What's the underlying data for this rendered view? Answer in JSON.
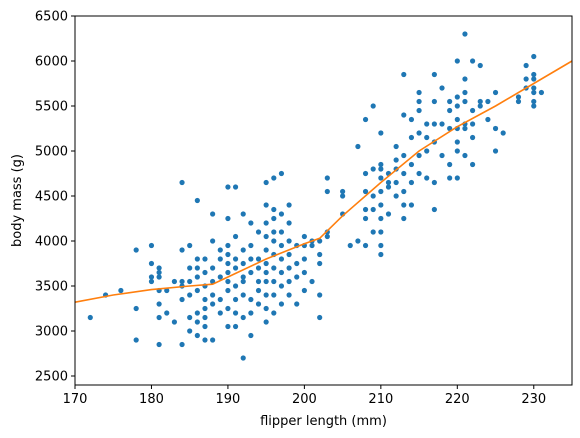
{
  "chart_data": {
    "type": "scatter",
    "title": "",
    "xlabel": "flipper length (mm)",
    "ylabel": "body mass (g)",
    "xlim": [
      170,
      235
    ],
    "ylim": [
      2400,
      6500
    ],
    "xticks": [
      170,
      180,
      190,
      200,
      210,
      220,
      230
    ],
    "yticks": [
      2500,
      3000,
      3500,
      4000,
      4500,
      5000,
      5500,
      6000,
      6500
    ],
    "grid": false,
    "legend": "none",
    "series": [
      {
        "kind": "scatter",
        "color": "#1f77b4",
        "points": [
          [
            172,
            3150
          ],
          [
            174,
            3400
          ],
          [
            176,
            3450
          ],
          [
            178,
            2900
          ],
          [
            178,
            3250
          ],
          [
            178,
            3900
          ],
          [
            180,
            3550
          ],
          [
            180,
            3600
          ],
          [
            180,
            3750
          ],
          [
            180,
            3950
          ],
          [
            181,
            2850
          ],
          [
            181,
            3150
          ],
          [
            181,
            3300
          ],
          [
            181,
            3450
          ],
          [
            181,
            3600
          ],
          [
            181,
            3650
          ],
          [
            181,
            3700
          ],
          [
            182,
            3200
          ],
          [
            182,
            3450
          ],
          [
            183,
            3100
          ],
          [
            183,
            3550
          ],
          [
            184,
            2850
          ],
          [
            184,
            3350
          ],
          [
            184,
            3500
          ],
          [
            184,
            3550
          ],
          [
            184,
            3900
          ],
          [
            184,
            4650
          ],
          [
            185,
            3000
          ],
          [
            185,
            3150
          ],
          [
            185,
            3400
          ],
          [
            185,
            3550
          ],
          [
            185,
            3700
          ],
          [
            185,
            3950
          ],
          [
            186,
            2950
          ],
          [
            186,
            3100
          ],
          [
            186,
            3200
          ],
          [
            186,
            3450
          ],
          [
            186,
            3600
          ],
          [
            186,
            3700
          ],
          [
            186,
            3800
          ],
          [
            186,
            4450
          ],
          [
            187,
            2900
          ],
          [
            187,
            3050
          ],
          [
            187,
            3150
          ],
          [
            187,
            3250
          ],
          [
            187,
            3350
          ],
          [
            187,
            3500
          ],
          [
            187,
            3650
          ],
          [
            187,
            3800
          ],
          [
            188,
            2900
          ],
          [
            188,
            3300
          ],
          [
            188,
            3400
          ],
          [
            188,
            3550
          ],
          [
            188,
            3700
          ],
          [
            188,
            4000
          ],
          [
            188,
            4300
          ],
          [
            189,
            3200
          ],
          [
            189,
            3350
          ],
          [
            189,
            3600
          ],
          [
            189,
            3800
          ],
          [
            189,
            3900
          ],
          [
            190,
            3050
          ],
          [
            190,
            3250
          ],
          [
            190,
            3450
          ],
          [
            190,
            3550
          ],
          [
            190,
            3650
          ],
          [
            190,
            3750
          ],
          [
            190,
            3850
          ],
          [
            190,
            3950
          ],
          [
            190,
            4250
          ],
          [
            190,
            4600
          ],
          [
            191,
            3050
          ],
          [
            191,
            3200
          ],
          [
            191,
            3350
          ],
          [
            191,
            3500
          ],
          [
            191,
            3700
          ],
          [
            191,
            3800
          ],
          [
            191,
            4050
          ],
          [
            191,
            4600
          ],
          [
            192,
            2700
          ],
          [
            192,
            3150
          ],
          [
            192,
            3400
          ],
          [
            192,
            3550
          ],
          [
            192,
            3600
          ],
          [
            192,
            3750
          ],
          [
            192,
            3900
          ],
          [
            192,
            4300
          ],
          [
            193,
            2950
          ],
          [
            193,
            3200
          ],
          [
            193,
            3350
          ],
          [
            193,
            3650
          ],
          [
            193,
            3800
          ],
          [
            193,
            3950
          ],
          [
            193,
            4200
          ],
          [
            194,
            3300
          ],
          [
            194,
            3450
          ],
          [
            194,
            3550
          ],
          [
            194,
            3700
          ],
          [
            194,
            3800
          ],
          [
            194,
            4100
          ],
          [
            195,
            3100
          ],
          [
            195,
            3250
          ],
          [
            195,
            3400
          ],
          [
            195,
            3550
          ],
          [
            195,
            3650
          ],
          [
            195,
            3750
          ],
          [
            195,
            3900
          ],
          [
            195,
            4050
          ],
          [
            195,
            4200
          ],
          [
            195,
            4400
          ],
          [
            195,
            4650
          ],
          [
            196,
            3200
          ],
          [
            196,
            3400
          ],
          [
            196,
            3550
          ],
          [
            196,
            3700
          ],
          [
            196,
            3850
          ],
          [
            196,
            4000
          ],
          [
            196,
            4100
          ],
          [
            196,
            4250
          ],
          [
            196,
            4350
          ],
          [
            196,
            4700
          ],
          [
            197,
            3300
          ],
          [
            197,
            3500
          ],
          [
            197,
            3650
          ],
          [
            197,
            3800
          ],
          [
            197,
            3950
          ],
          [
            197,
            4100
          ],
          [
            197,
            4300
          ],
          [
            197,
            4750
          ],
          [
            198,
            3400
          ],
          [
            198,
            3550
          ],
          [
            198,
            3700
          ],
          [
            198,
            3850
          ],
          [
            198,
            4000
          ],
          [
            198,
            4200
          ],
          [
            198,
            4400
          ],
          [
            199,
            3300
          ],
          [
            199,
            3600
          ],
          [
            199,
            3750
          ],
          [
            199,
            3950
          ],
          [
            200,
            3450
          ],
          [
            200,
            3650
          ],
          [
            200,
            3800
          ],
          [
            200,
            3950
          ],
          [
            200,
            4050
          ],
          [
            201,
            3550
          ],
          [
            201,
            3950
          ],
          [
            201,
            4000
          ],
          [
            202,
            3150
          ],
          [
            202,
            3400
          ],
          [
            202,
            3750
          ],
          [
            202,
            3850
          ],
          [
            202,
            4000
          ],
          [
            203,
            4050
          ],
          [
            203,
            4100
          ],
          [
            203,
            4550
          ],
          [
            203,
            4700
          ],
          [
            205,
            4300
          ],
          [
            205,
            4500
          ],
          [
            205,
            4550
          ],
          [
            206,
            3950
          ],
          [
            207,
            4000
          ],
          [
            207,
            5050
          ],
          [
            208,
            3950
          ],
          [
            208,
            4250
          ],
          [
            208,
            4350
          ],
          [
            208,
            4550
          ],
          [
            208,
            4750
          ],
          [
            208,
            5350
          ],
          [
            209,
            4100
          ],
          [
            209,
            4350
          ],
          [
            209,
            4500
          ],
          [
            209,
            4800
          ],
          [
            209,
            5500
          ],
          [
            210,
            3850
          ],
          [
            210,
            3950
          ],
          [
            210,
            4100
          ],
          [
            210,
            4250
          ],
          [
            210,
            4400
          ],
          [
            210,
            4550
          ],
          [
            210,
            4700
          ],
          [
            210,
            4800
          ],
          [
            210,
            4850
          ],
          [
            210,
            5200
          ],
          [
            211,
            4300
          ],
          [
            211,
            4600
          ],
          [
            211,
            4650
          ],
          [
            211,
            4750
          ],
          [
            212,
            4500
          ],
          [
            212,
            4650
          ],
          [
            212,
            4800
          ],
          [
            212,
            4900
          ],
          [
            212,
            5050
          ],
          [
            213,
            4250
          ],
          [
            213,
            4400
          ],
          [
            213,
            4550
          ],
          [
            213,
            4750
          ],
          [
            213,
            4950
          ],
          [
            213,
            5400
          ],
          [
            213,
            5850
          ],
          [
            214,
            4400
          ],
          [
            214,
            4650
          ],
          [
            214,
            4850
          ],
          [
            214,
            5150
          ],
          [
            214,
            5350
          ],
          [
            215,
            4750
          ],
          [
            215,
            4950
          ],
          [
            215,
            5200
          ],
          [
            215,
            5450
          ],
          [
            215,
            5550
          ],
          [
            215,
            5650
          ],
          [
            216,
            4700
          ],
          [
            216,
            5000
          ],
          [
            216,
            5150
          ],
          [
            216,
            5300
          ],
          [
            217,
            4350
          ],
          [
            217,
            4650
          ],
          [
            217,
            5100
          ],
          [
            217,
            5300
          ],
          [
            217,
            5550
          ],
          [
            217,
            5850
          ],
          [
            218,
            4950
          ],
          [
            218,
            5300
          ],
          [
            218,
            5700
          ],
          [
            219,
            4700
          ],
          [
            219,
            4850
          ],
          [
            219,
            5250
          ],
          [
            219,
            5450
          ],
          [
            219,
            5550
          ],
          [
            220,
            4700
          ],
          [
            220,
            5000
          ],
          [
            220,
            5100
          ],
          [
            220,
            5250
          ],
          [
            220,
            5350
          ],
          [
            220,
            5500
          ],
          [
            220,
            5600
          ],
          [
            220,
            6000
          ],
          [
            221,
            4950
          ],
          [
            221,
            5250
          ],
          [
            221,
            5300
          ],
          [
            221,
            5550
          ],
          [
            221,
            5650
          ],
          [
            221,
            5800
          ],
          [
            221,
            6300
          ],
          [
            222,
            4850
          ],
          [
            222,
            5150
          ],
          [
            222,
            5300
          ],
          [
            222,
            5450
          ],
          [
            222,
            6000
          ],
          [
            223,
            5500
          ],
          [
            223,
            5550
          ],
          [
            223,
            5950
          ],
          [
            224,
            5350
          ],
          [
            224,
            5550
          ],
          [
            225,
            5000
          ],
          [
            225,
            5250
          ],
          [
            225,
            5650
          ],
          [
            226,
            5200
          ],
          [
            228,
            5550
          ],
          [
            228,
            5600
          ],
          [
            229,
            5800
          ],
          [
            229,
            5950
          ],
          [
            229,
            5700
          ],
          [
            230,
            5500
          ],
          [
            230,
            5550
          ],
          [
            230,
            5650
          ],
          [
            230,
            5700
          ],
          [
            230,
            5800
          ],
          [
            230,
            5850
          ],
          [
            230,
            6050
          ],
          [
            231,
            5650
          ]
        ]
      },
      {
        "kind": "line",
        "color": "#ff7f0e",
        "points": [
          [
            170,
            3320
          ],
          [
            175,
            3400
          ],
          [
            180,
            3460
          ],
          [
            185,
            3500
          ],
          [
            188,
            3520
          ],
          [
            190,
            3600
          ],
          [
            195,
            3800
          ],
          [
            200,
            3970
          ],
          [
            202,
            4030
          ],
          [
            205,
            4280
          ],
          [
            210,
            4650
          ],
          [
            215,
            5000
          ],
          [
            220,
            5270
          ],
          [
            225,
            5500
          ],
          [
            230,
            5750
          ],
          [
            235,
            6000
          ]
        ]
      }
    ]
  }
}
